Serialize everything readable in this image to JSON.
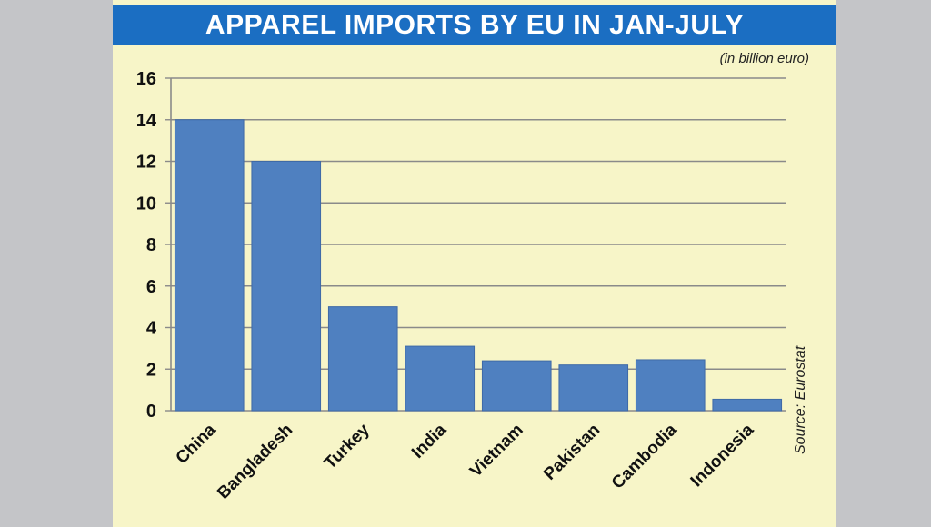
{
  "chart_data": {
    "type": "bar",
    "title": "APPAREL IMPORTS BY EU IN JAN-JULY",
    "unit_note": "(in billion euro)",
    "source": "Source: Eurostat",
    "categories": [
      "China",
      "Bangladesh",
      "Turkey",
      "India",
      "Vietnam",
      "Pakistan",
      "Cambodia",
      "Indonesia"
    ],
    "values": [
      14.0,
      12.0,
      5.0,
      3.1,
      2.4,
      2.2,
      2.45,
      0.55
    ],
    "yticks": [
      "0",
      "2",
      "4",
      "6",
      "8",
      "10",
      "12",
      "14",
      "16"
    ],
    "ylim": [
      0,
      16
    ],
    "grid": true,
    "bar_color": "#4f80c0",
    "title_bar_color": "#1b6ec2",
    "background_color": "#f7f5c8"
  }
}
